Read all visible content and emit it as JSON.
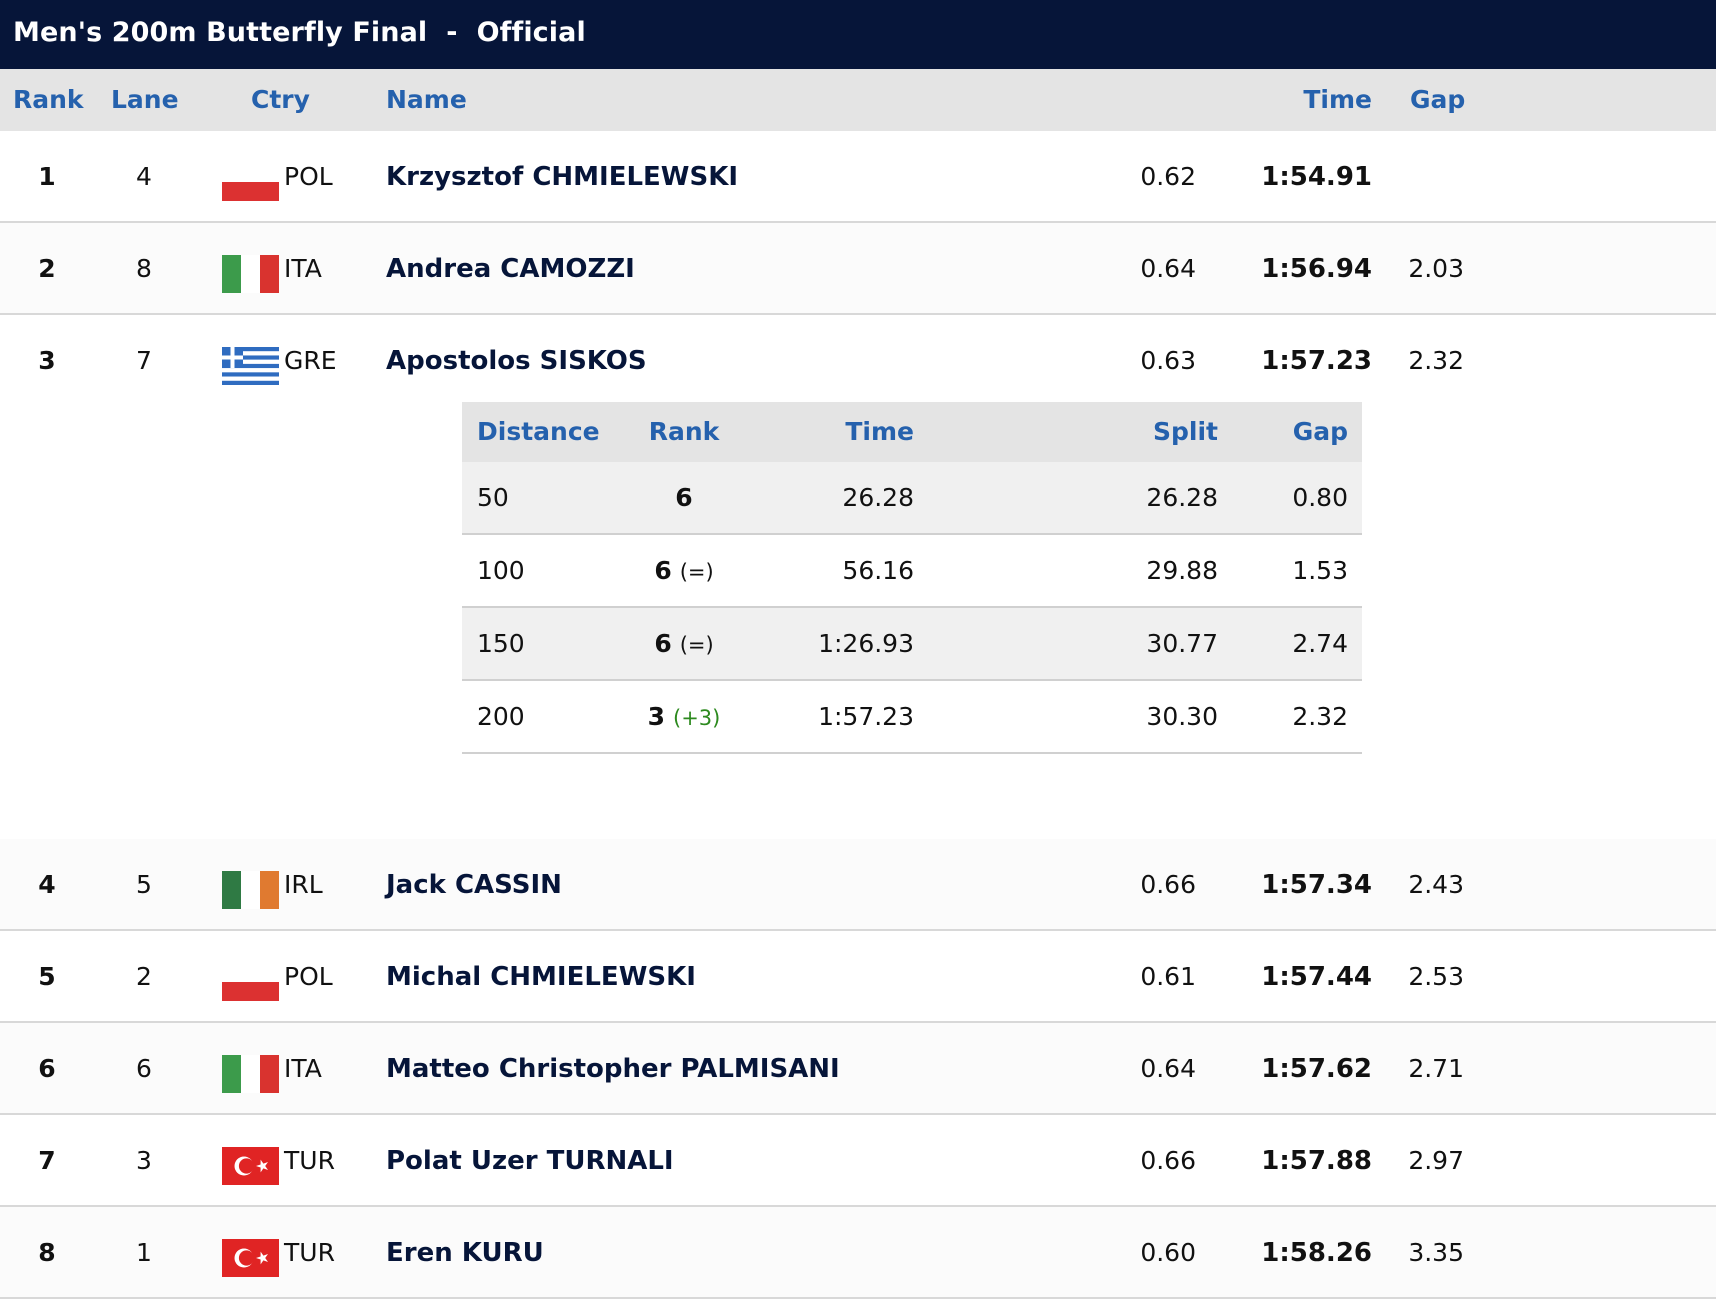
{
  "header": {
    "title": "Men's 200m Butterfly Final  -  Official"
  },
  "columns": {
    "rank": "Rank",
    "lane": "Lane",
    "ctry": "Ctry",
    "name": "Name",
    "time": "Time",
    "gap": "Gap"
  },
  "results": [
    {
      "rank": "1",
      "lane": "4",
      "ctry": "POL",
      "flag": "flag-poland",
      "name": "Krzysztof CHMIELEWSKI",
      "reaction": "0.62",
      "time": "1:54.91",
      "gap": ""
    },
    {
      "rank": "2",
      "lane": "8",
      "ctry": "ITA",
      "flag": "flag-italy",
      "name": "Andrea CAMOZZI",
      "reaction": "0.64",
      "time": "1:56.94",
      "gap": "2.03"
    },
    {
      "rank": "3",
      "lane": "7",
      "ctry": "GRE",
      "flag": "flag-greece",
      "name": "Apostolos SISKOS",
      "reaction": "0.63",
      "time": "1:57.23",
      "gap": "2.32"
    },
    {
      "rank": "4",
      "lane": "5",
      "ctry": "IRL",
      "flag": "flag-ireland",
      "name": "Jack CASSIN",
      "reaction": "0.66",
      "time": "1:57.34",
      "gap": "2.43"
    },
    {
      "rank": "5",
      "lane": "2",
      "ctry": "POL",
      "flag": "flag-poland",
      "name": "Michal CHMIELEWSKI",
      "reaction": "0.61",
      "time": "1:57.44",
      "gap": "2.53"
    },
    {
      "rank": "6",
      "lane": "6",
      "ctry": "ITA",
      "flag": "flag-italy",
      "name": "Matteo Christopher PALMISANI",
      "reaction": "0.64",
      "time": "1:57.62",
      "gap": "2.71"
    },
    {
      "rank": "7",
      "lane": "3",
      "ctry": "TUR",
      "flag": "flag-turkey",
      "name": "Polat Uzer TURNALI",
      "reaction": "0.66",
      "time": "1:57.88",
      "gap": "2.97"
    },
    {
      "rank": "8",
      "lane": "1",
      "ctry": "TUR",
      "flag": "flag-turkey",
      "name": "Eren KURU",
      "reaction": "0.60",
      "time": "1:58.26",
      "gap": "3.35"
    }
  ],
  "splits": {
    "columns": {
      "distance": "Distance",
      "rank": "Rank",
      "time": "Time",
      "split": "Split",
      "gap": "Gap"
    },
    "rows": [
      {
        "distance": "50",
        "rank": "6",
        "change": "",
        "time": "26.28",
        "split": "26.28",
        "gap": "0.80"
      },
      {
        "distance": "100",
        "rank": "6",
        "change": "(=)",
        "time": "56.16",
        "split": "29.88",
        "gap": "1.53"
      },
      {
        "distance": "150",
        "rank": "6",
        "change": "(=)",
        "time": "1:26.93",
        "split": "30.77",
        "gap": "2.74"
      },
      {
        "distance": "200",
        "rank": "3",
        "change": "(+3)",
        "time": "1:57.23",
        "split": "30.30",
        "gap": "2.32"
      }
    ]
  },
  "colors": {
    "header_bg": "#061539",
    "accent_blue": "#2561ad",
    "gain_green": "#2d8a1f"
  }
}
